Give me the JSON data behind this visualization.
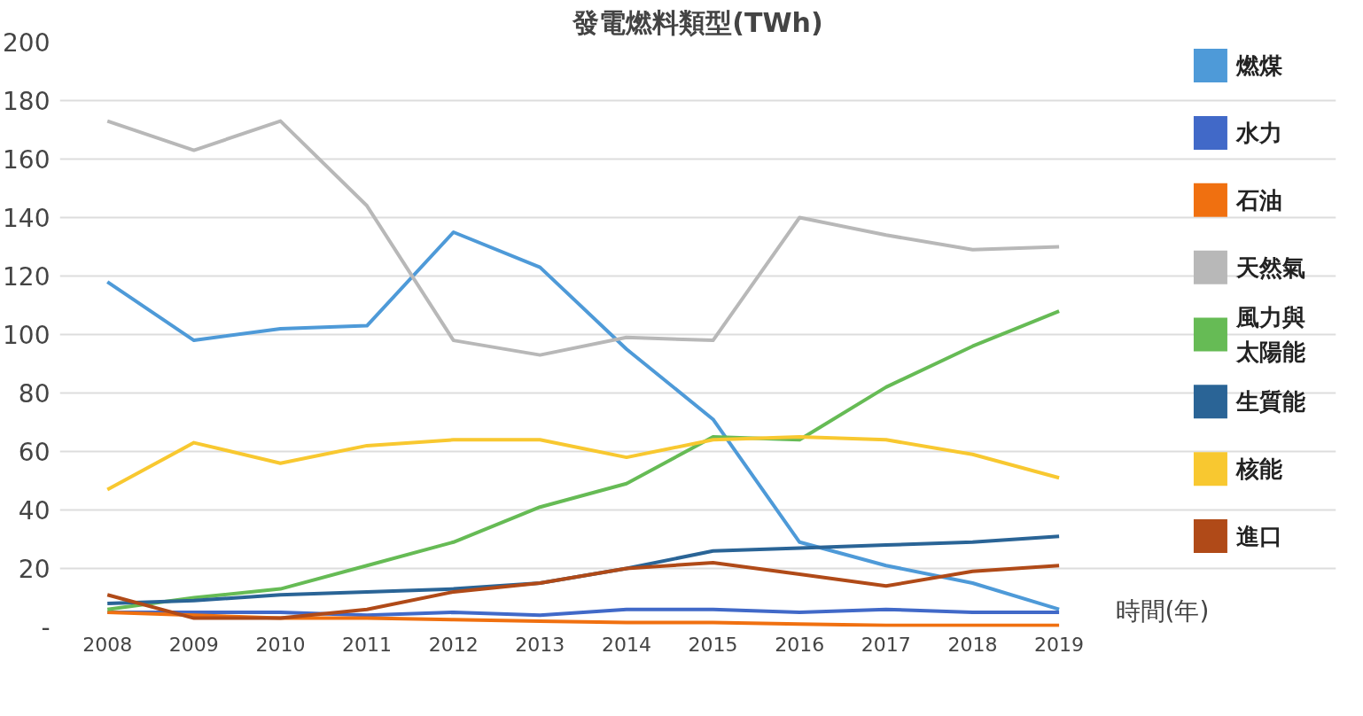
{
  "chart_data": {
    "type": "line",
    "title": "發電燃料類型(TWh)",
    "xlabel": "時間(年)",
    "categories": [
      "2008",
      "2009",
      "2010",
      "2011",
      "2012",
      "2013",
      "2014",
      "2015",
      "2016",
      "2017",
      "2018",
      "2019"
    ],
    "ylim": [
      0,
      200
    ],
    "yticks": [
      {
        "value": 0,
        "label": "-"
      },
      20,
      40,
      60,
      80,
      100,
      120,
      140,
      160,
      180,
      200
    ],
    "grid": "y",
    "legend": "right",
    "marker": "none",
    "line_style": "solid",
    "series": [
      {
        "name": "燃煤",
        "color": "#4e9ad8",
        "values": [
          118,
          98,
          102,
          103,
          135,
          123,
          95,
          71,
          29,
          21,
          15,
          6
        ]
      },
      {
        "name": "水力",
        "color": "#4169c8",
        "values": [
          5,
          5,
          5,
          4,
          5,
          4,
          6,
          6,
          5,
          6,
          5,
          5
        ]
      },
      {
        "name": "石油",
        "color": "#f07010",
        "values": [
          5,
          4,
          3,
          3,
          2.5,
          2,
          1.5,
          1.5,
          1,
          0.5,
          0.5,
          0.5
        ]
      },
      {
        "name": "天然氣",
        "color": "#b8b8b8",
        "values": [
          173,
          163,
          173,
          144,
          98,
          93,
          99,
          98,
          140,
          134,
          129,
          130
        ]
      },
      {
        "name": "風力與太陽能",
        "color": "#66bb55",
        "values": [
          6,
          10,
          13,
          21,
          29,
          41,
          49,
          65,
          64,
          82,
          96,
          108
        ]
      },
      {
        "name": "生質能",
        "color": "#2a6496",
        "values": [
          8,
          9,
          11,
          12,
          13,
          15,
          20,
          26,
          27,
          28,
          29,
          31
        ]
      },
      {
        "name": "核能",
        "color": "#f8c830",
        "values": [
          47,
          63,
          56,
          62,
          64,
          64,
          58,
          64,
          65,
          64,
          59,
          51
        ]
      },
      {
        "name": "進口",
        "color": "#b04a18",
        "values": [
          11,
          3,
          3,
          6,
          12,
          15,
          20,
          22,
          18,
          14,
          19,
          21
        ]
      }
    ]
  }
}
